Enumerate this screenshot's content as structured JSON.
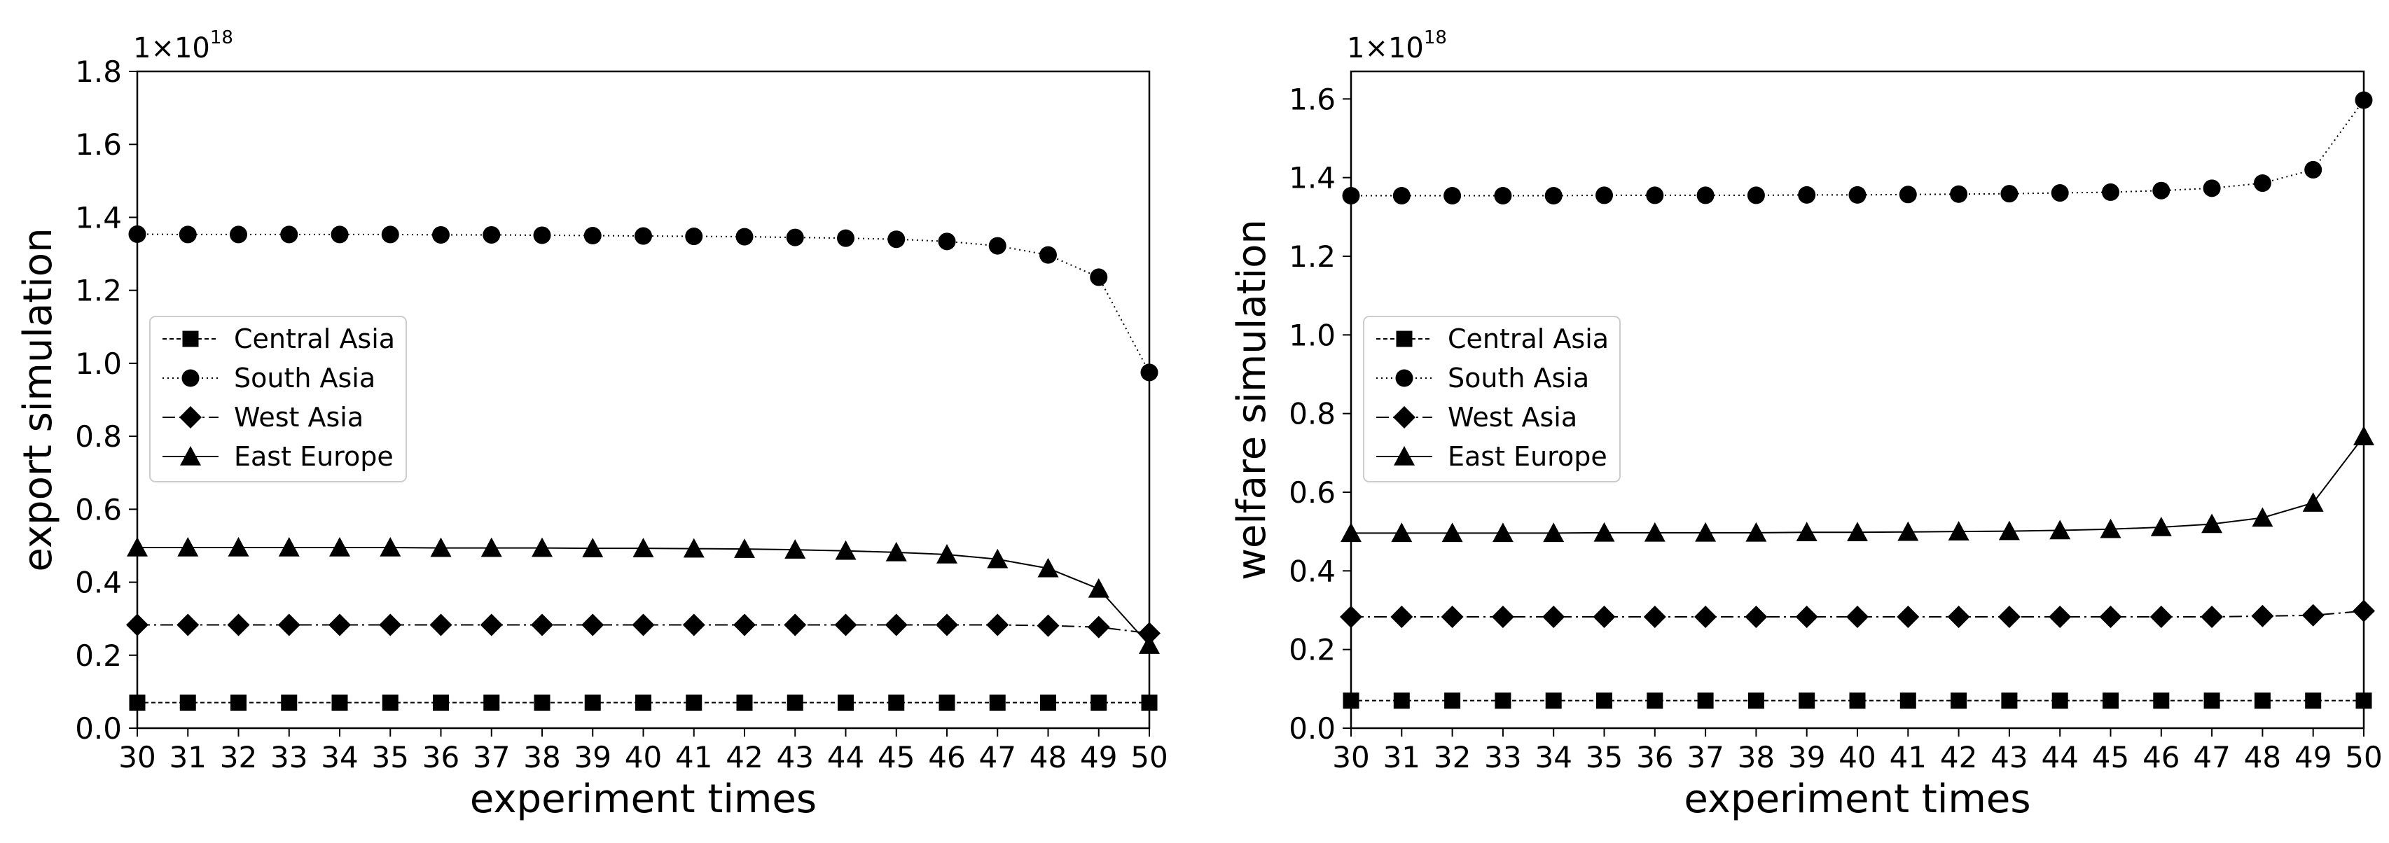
{
  "chart_data": [
    {
      "type": "line",
      "xlabel": "experiment times",
      "ylabel": "export simulation",
      "scale_label": "1×10",
      "scale_exponent": "18",
      "x": [
        30,
        31,
        32,
        33,
        34,
        35,
        36,
        37,
        38,
        39,
        40,
        41,
        42,
        43,
        44,
        45,
        46,
        47,
        48,
        49,
        50
      ],
      "xticks": [
        "30",
        "31",
        "32",
        "33",
        "34",
        "35",
        "36",
        "37",
        "38",
        "39",
        "40",
        "41",
        "42",
        "43",
        "44",
        "45",
        "46",
        "47",
        "48",
        "49",
        "50"
      ],
      "xlim": [
        30,
        50
      ],
      "ylim": [
        0.0,
        1.8
      ],
      "yticks": [
        0.0,
        0.2,
        0.4,
        0.6,
        0.8,
        1.0,
        1.2,
        1.4,
        1.6,
        1.8
      ],
      "ytick_labels": [
        "0.0",
        "0.2",
        "0.4",
        "0.6",
        "0.8",
        "1.0",
        "1.2",
        "1.4",
        "1.6",
        "1.8"
      ],
      "legend_position": "center-left",
      "series": [
        {
          "name": "Central Asia",
          "marker": "square",
          "line": "dashed-fine",
          "values": [
            0.07,
            0.07,
            0.07,
            0.07,
            0.07,
            0.07,
            0.07,
            0.07,
            0.07,
            0.07,
            0.07,
            0.07,
            0.07,
            0.07,
            0.07,
            0.07,
            0.07,
            0.07,
            0.07,
            0.07,
            0.07
          ]
        },
        {
          "name": "South Asia",
          "marker": "circle",
          "line": "dotted",
          "values": [
            1.354,
            1.353,
            1.353,
            1.353,
            1.353,
            1.353,
            1.352,
            1.352,
            1.351,
            1.35,
            1.349,
            1.348,
            1.347,
            1.345,
            1.343,
            1.34,
            1.334,
            1.322,
            1.297,
            1.236,
            0.975
          ]
        },
        {
          "name": "West Asia",
          "marker": "diamond",
          "line": "dashdot",
          "values": [
            0.283,
            0.283,
            0.283,
            0.283,
            0.283,
            0.283,
            0.283,
            0.283,
            0.283,
            0.283,
            0.283,
            0.283,
            0.283,
            0.283,
            0.283,
            0.283,
            0.283,
            0.283,
            0.281,
            0.277,
            0.26
          ]
        },
        {
          "name": "East Europe",
          "marker": "triangle",
          "line": "solid",
          "values": [
            0.495,
            0.495,
            0.495,
            0.495,
            0.495,
            0.495,
            0.494,
            0.494,
            0.494,
            0.493,
            0.493,
            0.492,
            0.491,
            0.489,
            0.486,
            0.482,
            0.476,
            0.463,
            0.438,
            0.382,
            0.228
          ]
        }
      ]
    },
    {
      "type": "line",
      "xlabel": "experiment times",
      "ylabel": "welfare simulation",
      "scale_label": "1×10",
      "scale_exponent": "18",
      "x": [
        30,
        31,
        32,
        33,
        34,
        35,
        36,
        37,
        38,
        39,
        40,
        41,
        42,
        43,
        44,
        45,
        46,
        47,
        48,
        49,
        50
      ],
      "xticks": [
        "30",
        "31",
        "32",
        "33",
        "34",
        "35",
        "36",
        "37",
        "38",
        "39",
        "40",
        "41",
        "42",
        "43",
        "44",
        "45",
        "46",
        "47",
        "48",
        "49",
        "50"
      ],
      "xlim": [
        30,
        50
      ],
      "ylim": [
        0.0,
        1.67
      ],
      "yticks": [
        0.0,
        0.2,
        0.4,
        0.6,
        0.8,
        1.0,
        1.2,
        1.4,
        1.6
      ],
      "ytick_labels": [
        "0.0",
        "0.2",
        "0.4",
        "0.6",
        "0.8",
        "1.0",
        "1.2",
        "1.4",
        "1.6"
      ],
      "legend_position": "center-left",
      "series": [
        {
          "name": "Central Asia",
          "marker": "square",
          "line": "dashed-fine",
          "values": [
            0.07,
            0.07,
            0.07,
            0.07,
            0.07,
            0.07,
            0.07,
            0.07,
            0.07,
            0.07,
            0.07,
            0.07,
            0.07,
            0.07,
            0.07,
            0.07,
            0.07,
            0.07,
            0.07,
            0.07,
            0.07
          ]
        },
        {
          "name": "South Asia",
          "marker": "circle",
          "line": "dotted",
          "values": [
            1.354,
            1.354,
            1.354,
            1.354,
            1.354,
            1.355,
            1.355,
            1.355,
            1.355,
            1.356,
            1.356,
            1.357,
            1.358,
            1.359,
            1.361,
            1.363,
            1.367,
            1.373,
            1.386,
            1.42,
            1.597
          ]
        },
        {
          "name": "West Asia",
          "marker": "diamond",
          "line": "dashdot",
          "values": [
            0.283,
            0.283,
            0.283,
            0.283,
            0.283,
            0.283,
            0.283,
            0.283,
            0.283,
            0.283,
            0.283,
            0.283,
            0.283,
            0.283,
            0.283,
            0.283,
            0.283,
            0.283,
            0.285,
            0.287,
            0.298
          ]
        },
        {
          "name": "East Europe",
          "marker": "triangle",
          "line": "solid",
          "values": [
            0.496,
            0.496,
            0.496,
            0.496,
            0.496,
            0.497,
            0.497,
            0.497,
            0.497,
            0.498,
            0.498,
            0.499,
            0.5,
            0.501,
            0.503,
            0.506,
            0.511,
            0.519,
            0.535,
            0.573,
            0.742
          ]
        }
      ]
    }
  ]
}
